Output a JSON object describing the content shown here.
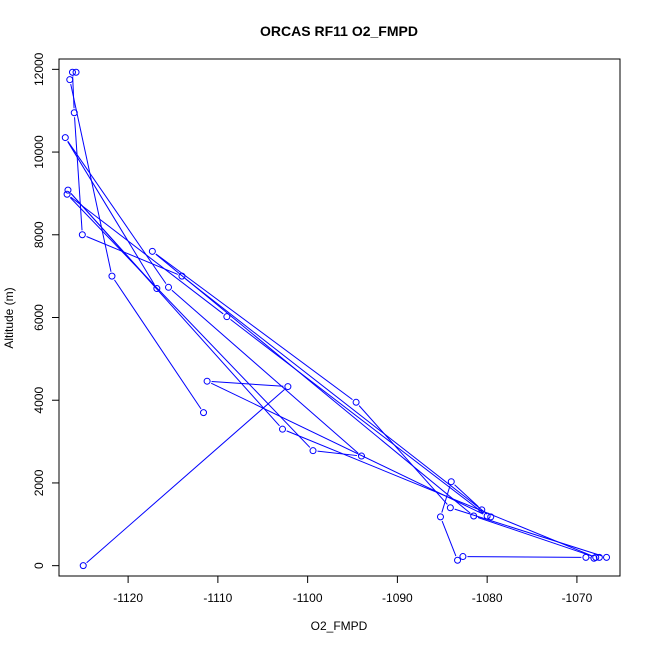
{
  "chart_data": {
    "type": "scatter",
    "title": "ORCAS RF11 O2_FMPD",
    "xlabel": "O2_FMPD",
    "ylabel": "Altitude (m)",
    "xlim": [
      -1127.7,
      -1065.2
    ],
    "ylim": [
      -250,
      12250
    ],
    "xticks": [
      -1120,
      -1110,
      -1100,
      -1090,
      -1080,
      -1070
    ],
    "yticks": [
      0,
      2000,
      4000,
      6000,
      8000,
      10000,
      12000
    ],
    "grid": false,
    "legend": "none",
    "style": "points-and-lines",
    "color": "#0000ff",
    "series": [
      {
        "x": [
          -1111.6,
          -1121.8,
          -1126.5,
          -1125.8,
          -1126.2,
          -1126.0,
          -1125.1,
          -1114.0,
          -1079.6,
          -1080.6,
          -1084.0,
          -1085.2,
          -1083.3,
          -1082.7,
          -1069.0,
          -1068.1,
          -1067.5,
          -1066.7,
          -1084.1,
          -1094.6,
          -1117.3,
          -1081.5,
          -1067.9,
          -1102.8,
          -1126.7,
          -1116.8,
          -1127.0,
          -1115.5,
          -1094.0,
          -1099.4,
          -1126.8,
          -1109.0,
          -1080.0,
          -1111.2,
          -1102.2,
          -1125.0
        ],
        "y": [
          3700,
          7000,
          11750,
          11930,
          11930,
          10950,
          8000,
          7000,
          1180,
          1350,
          2030,
          1180,
          130,
          220,
          200,
          180,
          200,
          200,
          1400,
          3950,
          7600,
          1200,
          200,
          3300,
          9080,
          6700,
          10350,
          6730,
          2650,
          2780,
          8980,
          6020,
          1200,
          4460,
          4330,
          0
        ]
      }
    ]
  }
}
